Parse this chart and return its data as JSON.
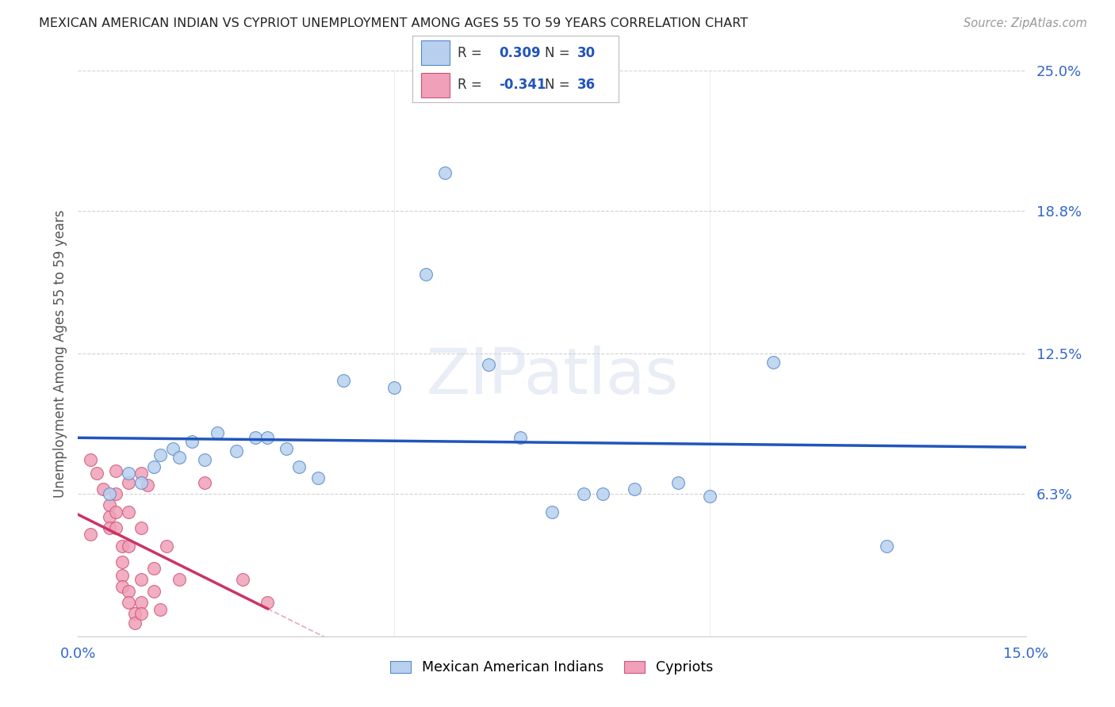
{
  "title": "MEXICAN AMERICAN INDIAN VS CYPRIOT UNEMPLOYMENT AMONG AGES 55 TO 59 YEARS CORRELATION CHART",
  "source": "Source: ZipAtlas.com",
  "ylabel": "Unemployment Among Ages 55 to 59 years",
  "xlim": [
    0.0,
    0.15
  ],
  "ylim": [
    0.0,
    0.25
  ],
  "xtick_positions": [
    0.0,
    0.05,
    0.1,
    0.15
  ],
  "xtick_labels": [
    "0.0%",
    "",
    "",
    "15.0%"
  ],
  "ytick_positions": [
    0.0,
    0.063,
    0.125,
    0.188,
    0.25
  ],
  "ytick_labels": [
    "",
    "6.3%",
    "12.5%",
    "18.8%",
    "25.0%"
  ],
  "blue_dot_color": "#b8d0ee",
  "blue_edge_color": "#5588cc",
  "pink_dot_color": "#f0a0b8",
  "pink_edge_color": "#cc5577",
  "blue_line_color": "#2255bb",
  "pink_line_color": "#cc3366",
  "watermark": "ZIPatlas",
  "background_color": "#ffffff",
  "grid_color": "#cccccc",
  "title_color": "#222222",
  "source_color": "#999999",
  "axis_label_color": "#555555",
  "tick_color": "#3366cc",
  "blue_scatter": [
    [
      0.005,
      0.063
    ],
    [
      0.008,
      0.072
    ],
    [
      0.01,
      0.068
    ],
    [
      0.012,
      0.075
    ],
    [
      0.013,
      0.08
    ],
    [
      0.015,
      0.083
    ],
    [
      0.016,
      0.079
    ],
    [
      0.018,
      0.086
    ],
    [
      0.02,
      0.078
    ],
    [
      0.022,
      0.09
    ],
    [
      0.025,
      0.082
    ],
    [
      0.028,
      0.088
    ],
    [
      0.03,
      0.088
    ],
    [
      0.033,
      0.083
    ],
    [
      0.035,
      0.075
    ],
    [
      0.038,
      0.07
    ],
    [
      0.042,
      0.113
    ],
    [
      0.05,
      0.11
    ],
    [
      0.055,
      0.16
    ],
    [
      0.058,
      0.205
    ],
    [
      0.065,
      0.12
    ],
    [
      0.07,
      0.088
    ],
    [
      0.075,
      0.055
    ],
    [
      0.08,
      0.063
    ],
    [
      0.083,
      0.063
    ],
    [
      0.088,
      0.065
    ],
    [
      0.095,
      0.068
    ],
    [
      0.1,
      0.062
    ],
    [
      0.11,
      0.121
    ],
    [
      0.128,
      0.04
    ]
  ],
  "pink_scatter": [
    [
      0.002,
      0.078
    ],
    [
      0.003,
      0.072
    ],
    [
      0.004,
      0.065
    ],
    [
      0.005,
      0.058
    ],
    [
      0.005,
      0.053
    ],
    [
      0.005,
      0.048
    ],
    [
      0.006,
      0.073
    ],
    [
      0.006,
      0.063
    ],
    [
      0.006,
      0.055
    ],
    [
      0.006,
      0.048
    ],
    [
      0.007,
      0.04
    ],
    [
      0.007,
      0.033
    ],
    [
      0.007,
      0.027
    ],
    [
      0.007,
      0.022
    ],
    [
      0.008,
      0.068
    ],
    [
      0.008,
      0.055
    ],
    [
      0.008,
      0.04
    ],
    [
      0.008,
      0.02
    ],
    [
      0.008,
      0.015
    ],
    [
      0.009,
      0.01
    ],
    [
      0.009,
      0.006
    ],
    [
      0.01,
      0.072
    ],
    [
      0.01,
      0.048
    ],
    [
      0.01,
      0.025
    ],
    [
      0.01,
      0.015
    ],
    [
      0.01,
      0.01
    ],
    [
      0.011,
      0.067
    ],
    [
      0.012,
      0.03
    ],
    [
      0.012,
      0.02
    ],
    [
      0.013,
      0.012
    ],
    [
      0.014,
      0.04
    ],
    [
      0.016,
      0.025
    ],
    [
      0.02,
      0.068
    ],
    [
      0.026,
      0.025
    ],
    [
      0.03,
      0.015
    ],
    [
      0.002,
      0.045
    ]
  ],
  "bottom_legend_labels": [
    "Mexican American Indians",
    "Cypriots"
  ]
}
